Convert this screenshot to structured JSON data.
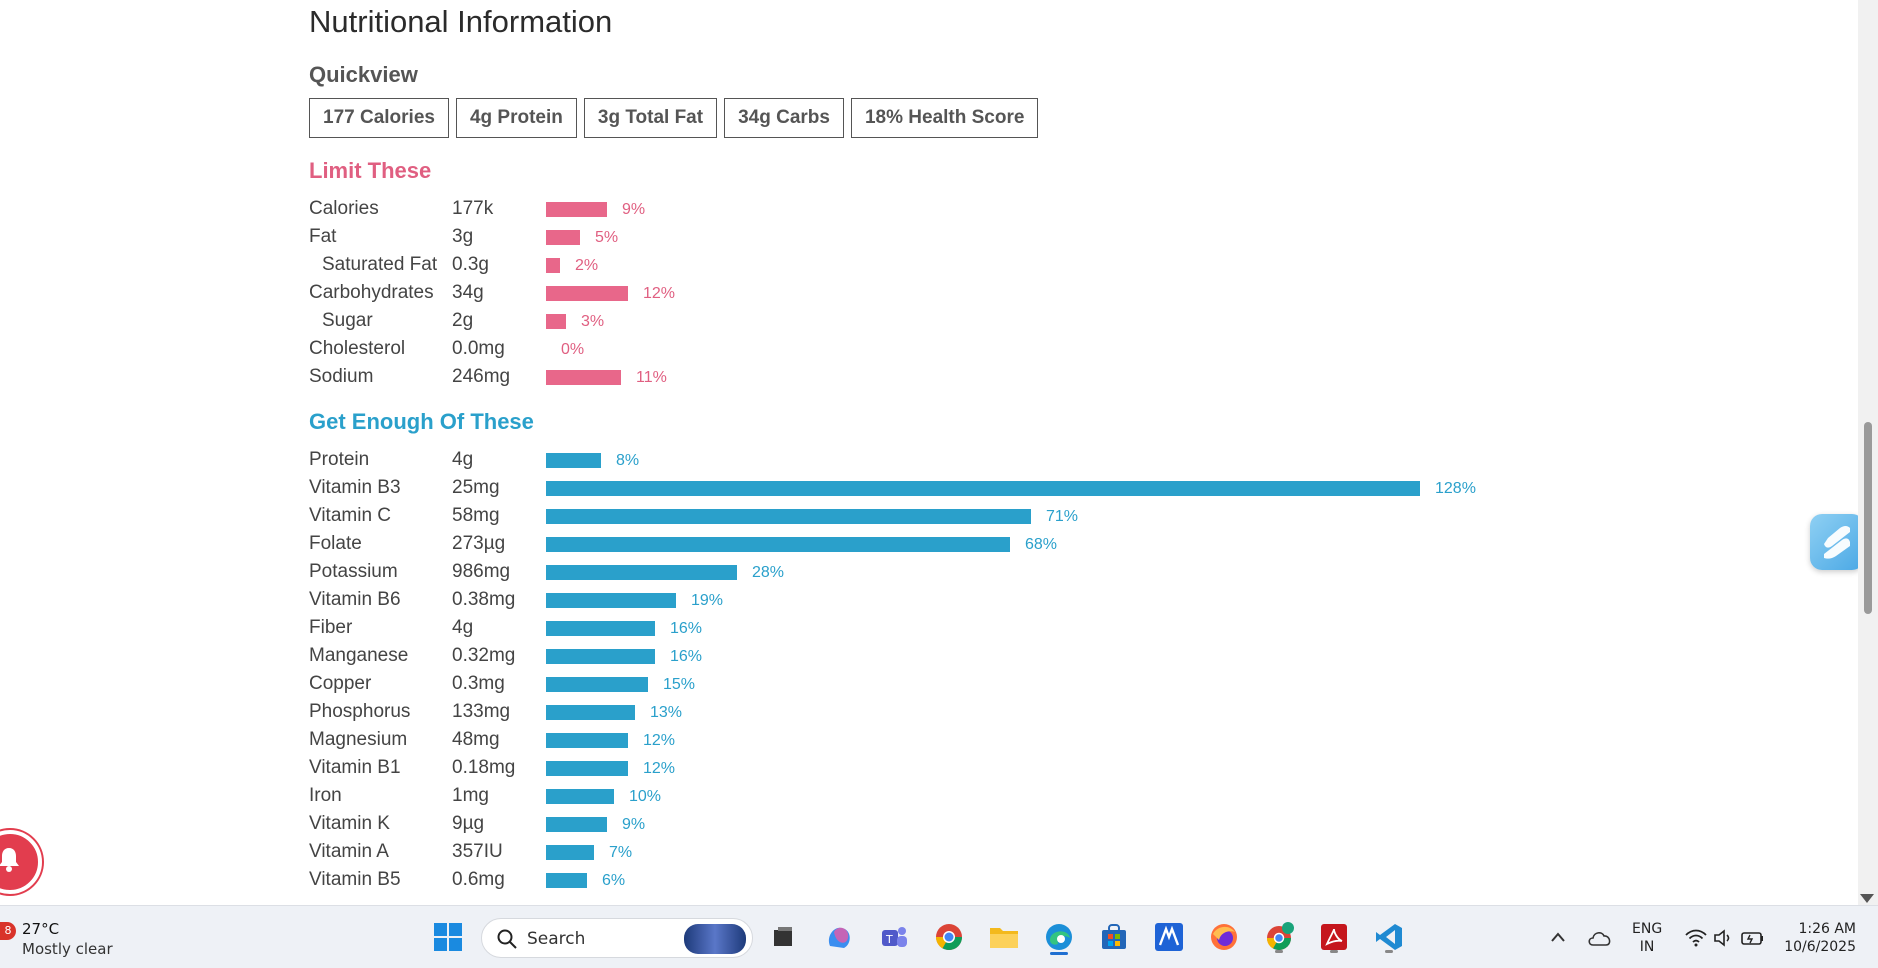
{
  "page": {
    "title": "Nutritional Information",
    "quickview_label": "Quickview",
    "quickview": [
      "177 Calories",
      "4g Protein",
      "3g Total Fat",
      "34g Carbs",
      "18% Health Score"
    ]
  },
  "limit": {
    "heading": "Limit These",
    "rows": [
      {
        "label": "Calories",
        "amount": "177k",
        "percent": 9,
        "percent_label": "9%",
        "indent": false
      },
      {
        "label": "Fat",
        "amount": "3g",
        "percent": 5,
        "percent_label": "5%",
        "indent": false
      },
      {
        "label": "Saturated Fat",
        "amount": "0.3g",
        "percent": 2,
        "percent_label": "2%",
        "indent": true
      },
      {
        "label": "Carbohydrates",
        "amount": "34g",
        "percent": 12,
        "percent_label": "12%",
        "indent": false
      },
      {
        "label": "Sugar",
        "amount": "2g",
        "percent": 3,
        "percent_label": "3%",
        "indent": true
      },
      {
        "label": "Cholesterol",
        "amount": "0.0mg",
        "percent": 0,
        "percent_label": "0%",
        "indent": false
      },
      {
        "label": "Sodium",
        "amount": "246mg",
        "percent": 11,
        "percent_label": "11%",
        "indent": false
      }
    ]
  },
  "enough": {
    "heading": "Get Enough Of These",
    "rows": [
      {
        "label": "Protein",
        "amount": "4g",
        "percent": 8,
        "percent_label": "8%"
      },
      {
        "label": "Vitamin B3",
        "amount": "25mg",
        "percent": 128,
        "percent_label": "128%"
      },
      {
        "label": "Vitamin C",
        "amount": "58mg",
        "percent": 71,
        "percent_label": "71%"
      },
      {
        "label": "Folate",
        "amount": "273µg",
        "percent": 68,
        "percent_label": "68%"
      },
      {
        "label": "Potassium",
        "amount": "986mg",
        "percent": 28,
        "percent_label": "28%"
      },
      {
        "label": "Vitamin B6",
        "amount": "0.38mg",
        "percent": 19,
        "percent_label": "19%"
      },
      {
        "label": "Fiber",
        "amount": "4g",
        "percent": 16,
        "percent_label": "16%"
      },
      {
        "label": "Manganese",
        "amount": "0.32mg",
        "percent": 16,
        "percent_label": "16%"
      },
      {
        "label": "Copper",
        "amount": "0.3mg",
        "percent": 15,
        "percent_label": "15%"
      },
      {
        "label": "Phosphorus",
        "amount": "133mg",
        "percent": 13,
        "percent_label": "13%"
      },
      {
        "label": "Magnesium",
        "amount": "48mg",
        "percent": 12,
        "percent_label": "12%"
      },
      {
        "label": "Vitamin B1",
        "amount": "0.18mg",
        "percent": 12,
        "percent_label": "12%"
      },
      {
        "label": "Iron",
        "amount": "1mg",
        "percent": 10,
        "percent_label": "10%"
      },
      {
        "label": "Vitamin K",
        "amount": "9µg",
        "percent": 9,
        "percent_label": "9%"
      },
      {
        "label": "Vitamin A",
        "amount": "357IU",
        "percent": 7,
        "percent_label": "7%"
      },
      {
        "label": "Vitamin B5",
        "amount": "0.6mg",
        "percent": 6,
        "percent_label": "6%"
      }
    ]
  },
  "colors": {
    "limit": "#e8678a",
    "enough": "#2aa0cb"
  },
  "taskbar": {
    "weather_badge": "8",
    "weather_temp": "27°C",
    "weather_desc": "Mostly clear",
    "search_placeholder": "Search",
    "apps": [
      "file-explorer-icon",
      "copilot-icon",
      "teams-icon",
      "chrome-icon",
      "folder-icon",
      "edge-icon",
      "store-icon",
      "app-icon",
      "firefox-icon",
      "chrome-profile-icon",
      "acrobat-icon",
      "vscode-icon"
    ],
    "lang_line1": "ENG",
    "lang_line2": "IN",
    "time": "1:26 AM",
    "date": "10/6/2025"
  }
}
